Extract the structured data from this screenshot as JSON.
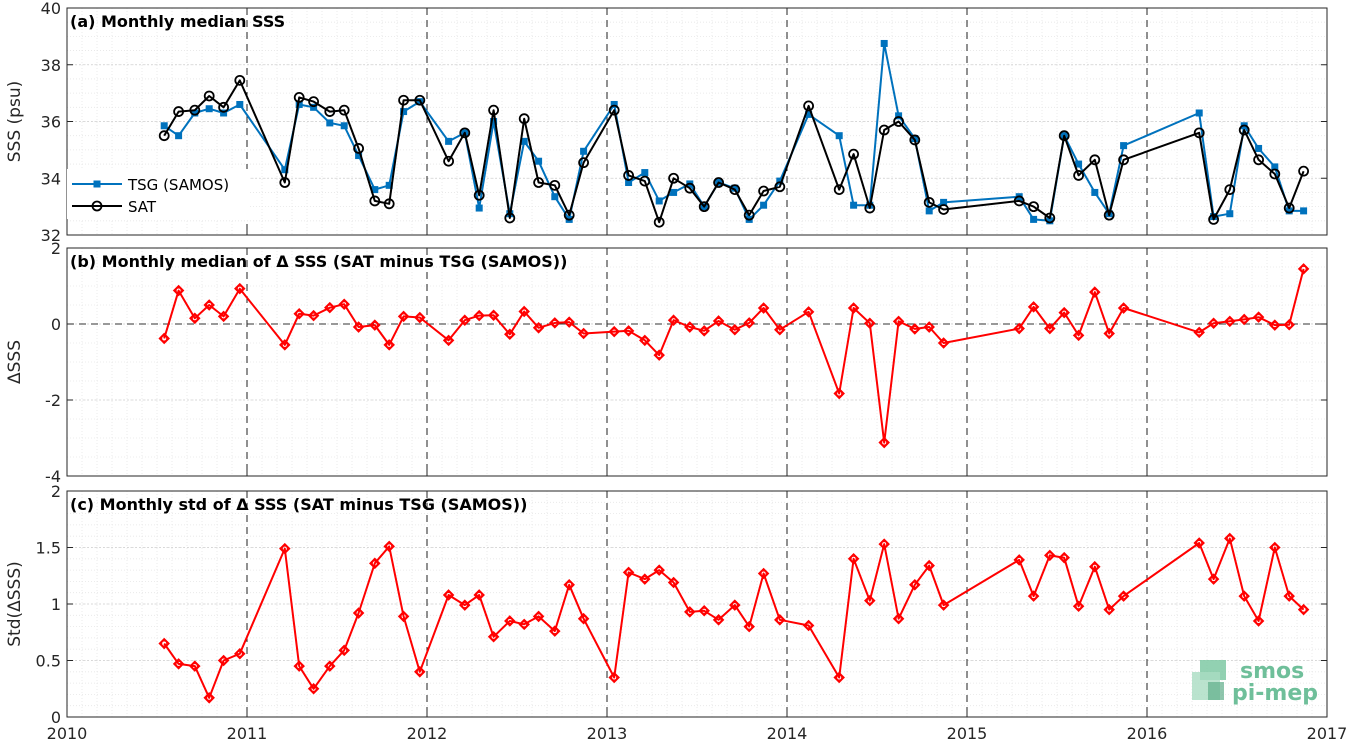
{
  "chart_data": [
    {
      "type": "line",
      "title": "(a) Monthly median SSS",
      "xlabel": "",
      "ylabel": "SSS (psu)",
      "xlim": [
        2010,
        2017
      ],
      "ylim": [
        32,
        40
      ],
      "xticks": [
        2010,
        2011,
        2012,
        2013,
        2014,
        2015,
        2016,
        2017
      ],
      "yticks": [
        32,
        34,
        36,
        38,
        40
      ],
      "grid": true,
      "legend_position": "left",
      "series": [
        {
          "name": "TSG (SAMOS)",
          "color": "#0072bd",
          "marker": "square",
          "x": [
            2010.54,
            2010.62,
            2010.71,
            2010.79,
            2010.87,
            2010.96,
            2011.21,
            2011.29,
            2011.37,
            2011.46,
            2011.54,
            2011.62,
            2011.71,
            2011.79,
            2011.87,
            2011.96,
            2012.12,
            2012.21,
            2012.29,
            2012.37,
            2012.46,
            2012.54,
            2012.62,
            2012.71,
            2012.79,
            2012.87,
            2013.04,
            2013.12,
            2013.21,
            2013.29,
            2013.37,
            2013.46,
            2013.54,
            2013.62,
            2013.71,
            2013.79,
            2013.87,
            2013.96,
            2014.12,
            2014.29,
            2014.37,
            2014.46,
            2014.54,
            2014.62,
            2014.71,
            2014.79,
            2014.87,
            2015.29,
            2015.37,
            2015.46,
            2015.54,
            2015.62,
            2015.71,
            2015.79,
            2015.87,
            2016.29,
            2016.37,
            2016.46,
            2016.54,
            2016.62,
            2016.71,
            2016.79,
            2016.87
          ],
          "y": [
            35.85,
            35.5,
            36.3,
            36.45,
            36.3,
            36.6,
            34.3,
            36.6,
            36.5,
            35.95,
            35.85,
            34.8,
            33.6,
            33.75,
            36.35,
            36.7,
            35.3,
            35.6,
            32.95,
            36.0,
            32.75,
            35.3,
            34.6,
            33.35,
            32.55,
            34.95,
            36.6,
            33.85,
            34.2,
            33.2,
            33.5,
            33.8,
            33.0,
            33.85,
            33.65,
            32.55,
            33.05,
            33.9,
            36.25,
            35.5,
            33.05,
            33.05,
            38.75,
            36.2,
            35.4,
            32.85,
            33.15,
            33.35,
            32.55,
            32.5,
            35.5,
            34.5,
            33.5,
            32.75,
            35.15,
            36.3,
            32.65,
            32.75,
            35.85,
            35.05,
            34.4,
            32.85,
            32.85
          ]
        },
        {
          "name": "SAT",
          "color": "#000000",
          "marker": "circle",
          "x": [
            2010.54,
            2010.62,
            2010.71,
            2010.79,
            2010.87,
            2010.96,
            2011.21,
            2011.29,
            2011.37,
            2011.46,
            2011.54,
            2011.62,
            2011.71,
            2011.79,
            2011.87,
            2011.96,
            2012.12,
            2012.21,
            2012.29,
            2012.37,
            2012.46,
            2012.54,
            2012.62,
            2012.71,
            2012.79,
            2012.87,
            2013.04,
            2013.12,
            2013.21,
            2013.29,
            2013.37,
            2013.46,
            2013.54,
            2013.62,
            2013.71,
            2013.79,
            2013.87,
            2013.96,
            2014.12,
            2014.29,
            2014.37,
            2014.46,
            2014.54,
            2014.62,
            2014.71,
            2014.79,
            2014.87,
            2015.29,
            2015.37,
            2015.46,
            2015.54,
            2015.62,
            2015.71,
            2015.79,
            2015.87,
            2016.29,
            2016.37,
            2016.46,
            2016.54,
            2016.62,
            2016.71,
            2016.79,
            2016.87
          ],
          "y": [
            35.5,
            36.35,
            36.4,
            36.9,
            36.5,
            37.45,
            33.85,
            36.85,
            36.7,
            36.35,
            36.4,
            35.05,
            33.2,
            33.1,
            36.75,
            36.75,
            34.6,
            35.6,
            33.4,
            36.4,
            32.6,
            36.1,
            33.85,
            33.75,
            32.7,
            34.55,
            36.4,
            34.1,
            33.9,
            32.45,
            34.0,
            33.65,
            33.0,
            33.85,
            33.6,
            32.7,
            33.55,
            33.7,
            36.55,
            33.6,
            34.85,
            32.95,
            35.7,
            36.0,
            35.35,
            33.15,
            32.9,
            33.2,
            33.0,
            32.6,
            35.5,
            34.1,
            34.65,
            32.7,
            34.65,
            35.6,
            32.55,
            33.6,
            35.7,
            34.65,
            34.15,
            32.95,
            34.25
          ]
        }
      ]
    },
    {
      "type": "line",
      "title": "(b) Monthly median of Δ SSS (SAT minus TSG (SAMOS))",
      "xlabel": "",
      "ylabel": "ΔSSS",
      "xlim": [
        2010,
        2017
      ],
      "ylim": [
        -4,
        2
      ],
      "xticks": [
        2010,
        2011,
        2012,
        2013,
        2014,
        2015,
        2016,
        2017
      ],
      "yticks": [
        -4,
        -2,
        0,
        2
      ],
      "grid": true,
      "series": [
        {
          "color": "#ff0000",
          "marker": "diamond",
          "x": [
            2010.54,
            2010.62,
            2010.71,
            2010.79,
            2010.87,
            2010.96,
            2011.21,
            2011.29,
            2011.37,
            2011.46,
            2011.54,
            2011.62,
            2011.71,
            2011.79,
            2011.87,
            2011.96,
            2012.12,
            2012.21,
            2012.29,
            2012.37,
            2012.46,
            2012.54,
            2012.62,
            2012.71,
            2012.79,
            2012.87,
            2013.04,
            2013.12,
            2013.21,
            2013.29,
            2013.37,
            2013.46,
            2013.54,
            2013.62,
            2013.71,
            2013.79,
            2013.87,
            2013.96,
            2014.12,
            2014.29,
            2014.37,
            2014.46,
            2014.54,
            2014.62,
            2014.71,
            2014.79,
            2014.87,
            2015.29,
            2015.37,
            2015.46,
            2015.54,
            2015.62,
            2015.71,
            2015.79,
            2015.87,
            2016.29,
            2016.37,
            2016.46,
            2016.54,
            2016.62,
            2016.71,
            2016.79,
            2016.87
          ],
          "y": [
            -0.38,
            0.88,
            0.15,
            0.5,
            0.2,
            0.93,
            -0.55,
            0.27,
            0.22,
            0.43,
            0.52,
            -0.08,
            -0.03,
            -0.55,
            0.2,
            0.17,
            -0.43,
            0.1,
            0.22,
            0.23,
            -0.27,
            0.33,
            -0.1,
            0.03,
            0.05,
            -0.25,
            -0.2,
            -0.18,
            -0.43,
            -0.82,
            0.1,
            -0.08,
            -0.18,
            0.08,
            -0.15,
            0.03,
            0.42,
            -0.15,
            0.32,
            -1.83,
            0.42,
            0.02,
            -3.12,
            0.07,
            -0.13,
            -0.08,
            -0.5,
            -0.12,
            0.45,
            -0.12,
            0.3,
            -0.3,
            0.84,
            -0.25,
            0.42,
            -0.22,
            0.02,
            0.07,
            0.12,
            0.18,
            -0.03,
            -0.02,
            1.45
          ]
        }
      ]
    },
    {
      "type": "line",
      "title": "(c) Monthly std of Δ SSS (SAT minus TSG (SAMOS))",
      "xlabel": "",
      "ylabel": "Std(ΔSSS)",
      "xlim": [
        2010,
        2017
      ],
      "ylim": [
        0,
        2
      ],
      "xticks": [
        2010,
        2011,
        2012,
        2013,
        2014,
        2015,
        2016,
        2017
      ],
      "yticks": [
        0,
        0.5,
        1,
        1.5,
        2
      ],
      "grid": true,
      "series": [
        {
          "color": "#ff0000",
          "marker": "diamond",
          "x": [
            2010.54,
            2010.62,
            2010.71,
            2010.79,
            2010.87,
            2010.96,
            2011.21,
            2011.29,
            2011.37,
            2011.46,
            2011.54,
            2011.62,
            2011.71,
            2011.79,
            2011.87,
            2011.96,
            2012.12,
            2012.21,
            2012.29,
            2012.37,
            2012.46,
            2012.54,
            2012.62,
            2012.71,
            2012.79,
            2012.87,
            2013.04,
            2013.12,
            2013.21,
            2013.29,
            2013.37,
            2013.46,
            2013.54,
            2013.62,
            2013.71,
            2013.79,
            2013.87,
            2013.96,
            2014.12,
            2014.29,
            2014.37,
            2014.46,
            2014.54,
            2014.62,
            2014.71,
            2014.79,
            2014.87,
            2015.29,
            2015.37,
            2015.46,
            2015.54,
            2015.62,
            2015.71,
            2015.79,
            2015.87,
            2016.29,
            2016.37,
            2016.46,
            2016.54,
            2016.62,
            2016.71,
            2016.79,
            2016.87
          ],
          "y": [
            0.65,
            0.47,
            0.45,
            0.17,
            0.5,
            0.56,
            1.49,
            0.45,
            0.25,
            0.45,
            0.59,
            0.92,
            1.36,
            1.51,
            0.89,
            0.4,
            1.08,
            0.99,
            1.08,
            0.71,
            0.85,
            0.82,
            0.89,
            0.76,
            1.17,
            0.87,
            0.35,
            1.28,
            1.22,
            1.3,
            1.19,
            0.93,
            0.94,
            0.86,
            0.99,
            0.8,
            1.27,
            0.86,
            0.81,
            0.35,
            1.4,
            1.03,
            1.53,
            0.87,
            1.17,
            1.34,
            0.99,
            1.39,
            1.07,
            1.43,
            1.41,
            0.98,
            1.33,
            0.95,
            1.07,
            1.54,
            1.22,
            1.58,
            1.07,
            0.85,
            1.5,
            1.07,
            0.95
          ]
        }
      ]
    }
  ],
  "logo": {
    "line1": "smos",
    "line2": "pi-mep"
  }
}
